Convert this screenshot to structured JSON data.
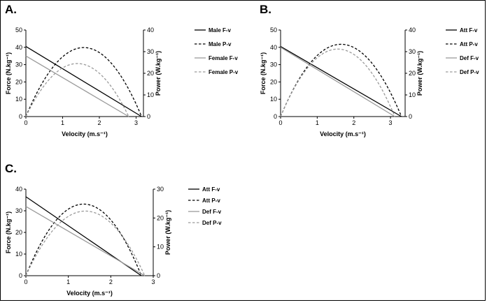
{
  "figure": {
    "panels": [
      {
        "id": "A",
        "panel_label": "A.",
        "xlabel": "Velocity (m.s⁻¹)",
        "ylabel_left": "Force (N.kg⁻¹)",
        "ylabel_right": "Power (W.kg⁻¹)",
        "legend": [
          "Male F-v",
          "Male P-v",
          "Female F-v",
          "Female P-v"
        ]
      },
      {
        "id": "B",
        "panel_label": "B.",
        "xlabel": "Velocity (m.s⁻¹)",
        "ylabel_left": "Force (N.kg⁻¹)",
        "ylabel_right": "Power (W.kg⁻¹)",
        "legend": [
          "Att F-v",
          "Att P-v",
          "Def F-v",
          "Def P-v"
        ]
      },
      {
        "id": "C",
        "panel_label": "C.",
        "xlabel": "Velocity (m.s⁻¹)",
        "ylabel_left": "Force (N.kg⁻¹)",
        "ylabel_right": "Power (W.kg⁻¹)",
        "legend": [
          "Att F-v",
          "Att P-v",
          "Def F-v",
          "Def P-v"
        ]
      }
    ]
  },
  "chart_data": [
    {
      "type": "line",
      "panel": "A.",
      "xlabel": "Velocity (m.s⁻¹)",
      "ylabel": "Force (N.kg⁻¹)",
      "y2label": "Power (W.kg⁻¹)",
      "xlim": [
        0,
        3.2
      ],
      "ylim": [
        0,
        50
      ],
      "y2lim": [
        0,
        40
      ],
      "xticks": [
        0,
        1,
        2,
        3
      ],
      "yticks": [
        0,
        10,
        20,
        30,
        40,
        50
      ],
      "y2ticks": [
        0,
        10,
        20,
        30,
        40
      ],
      "series": [
        {
          "name": "Male F-v",
          "axis": "left",
          "kind": "linear",
          "F0": 40.5,
          "V0": 3.15,
          "color": "#000000",
          "dash": "solid"
        },
        {
          "name": "Male P-v",
          "axis": "right",
          "kind": "power",
          "F0": 40.5,
          "V0": 3.15,
          "color": "#000000",
          "dash": "dashed"
        },
        {
          "name": "Female F-v",
          "axis": "left",
          "kind": "linear",
          "F0": 35.0,
          "V0": 2.8,
          "color": "#9a9a9a",
          "dash": "solid"
        },
        {
          "name": "Female P-v",
          "axis": "right",
          "kind": "power",
          "F0": 35.0,
          "V0": 2.8,
          "color": "#9a9a9a",
          "dash": "dashed"
        }
      ],
      "grid": false,
      "legend_position": "right"
    },
    {
      "type": "line",
      "panel": "B.",
      "xlabel": "Velocity (m.s⁻¹)",
      "ylabel": "Force (N.kg⁻¹)",
      "y2label": "Power (W.kg⁻¹)",
      "xlim": [
        0,
        3.4
      ],
      "ylim": [
        0,
        50
      ],
      "y2lim": [
        0,
        40
      ],
      "xticks": [
        0,
        1,
        2,
        3
      ],
      "yticks": [
        0,
        10,
        20,
        30,
        40,
        50
      ],
      "y2ticks": [
        0,
        10,
        20,
        30,
        40
      ],
      "series": [
        {
          "name": "Att F-v",
          "axis": "left",
          "kind": "linear",
          "F0": 40.5,
          "V0": 3.3,
          "color": "#000000",
          "dash": "solid"
        },
        {
          "name": "Att P-v",
          "axis": "right",
          "kind": "power",
          "F0": 40.5,
          "V0": 3.3,
          "color": "#000000",
          "dash": "dashed"
        },
        {
          "name": "Def F-v",
          "axis": "left",
          "kind": "linear",
          "F0": 40.0,
          "V0": 3.12,
          "color": "#9a9a9a",
          "dash": "solid"
        },
        {
          "name": "Def P-v",
          "axis": "right",
          "kind": "power",
          "F0": 40.0,
          "V0": 3.12,
          "color": "#9a9a9a",
          "dash": "dashed"
        }
      ],
      "grid": false,
      "legend_position": "right"
    },
    {
      "type": "line",
      "panel": "C.",
      "xlabel": "Velocity (m.s⁻¹)",
      "ylabel": "Force (N.kg⁻¹)",
      "y2label": "Power (W.kg⁻¹)",
      "xlim": [
        0,
        3
      ],
      "ylim": [
        0,
        40
      ],
      "y2lim": [
        0,
        30
      ],
      "xticks": [
        0,
        1,
        2,
        3
      ],
      "yticks": [
        0,
        10,
        20,
        30,
        40
      ],
      "y2ticks": [
        0,
        10,
        20,
        30
      ],
      "series": [
        {
          "name": "Att F-v",
          "axis": "left",
          "kind": "linear",
          "F0": 36.5,
          "V0": 2.72,
          "color": "#000000",
          "dash": "solid"
        },
        {
          "name": "Att P-v",
          "axis": "right",
          "kind": "power",
          "F0": 36.5,
          "V0": 2.72,
          "color": "#000000",
          "dash": "dashed"
        },
        {
          "name": "Def F-v",
          "axis": "left",
          "kind": "linear",
          "F0": 32.0,
          "V0": 2.8,
          "color": "#9a9a9a",
          "dash": "solid"
        },
        {
          "name": "Def P-v",
          "axis": "right",
          "kind": "power",
          "F0": 32.0,
          "V0": 2.8,
          "color": "#9a9a9a",
          "dash": "dashed"
        }
      ],
      "grid": false,
      "legend_position": "right"
    }
  ]
}
